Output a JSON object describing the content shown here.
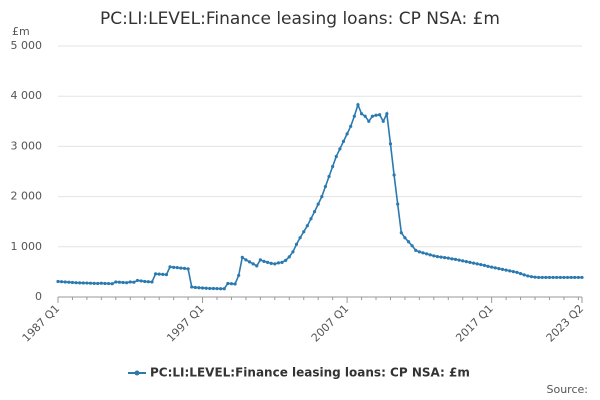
{
  "chart_data": {
    "type": "line",
    "title": "PC:LI:LEVEL:Finance leasing loans: CP NSA: £m",
    "y_label": "£m",
    "source": "Source:",
    "categories": [
      "1987 Q1",
      null,
      null,
      null,
      null,
      null,
      null,
      null,
      null,
      null,
      null,
      null,
      null,
      null,
      null,
      null,
      null,
      null,
      null,
      null,
      null,
      null,
      null,
      null,
      null,
      null,
      null,
      null,
      null,
      null,
      null,
      null,
      null,
      null,
      null,
      null,
      null,
      null,
      null,
      null,
      "1997 Q1",
      null,
      null,
      null,
      null,
      null,
      null,
      null,
      null,
      null,
      null,
      null,
      null,
      null,
      null,
      null,
      null,
      null,
      null,
      null,
      null,
      null,
      null,
      null,
      null,
      null,
      null,
      null,
      null,
      null,
      null,
      null,
      null,
      null,
      null,
      null,
      null,
      null,
      null,
      null,
      "2007 Q1",
      null,
      null,
      null,
      null,
      null,
      null,
      null,
      null,
      null,
      null,
      null,
      null,
      null,
      null,
      null,
      null,
      null,
      null,
      null,
      null,
      null,
      null,
      null,
      null,
      null,
      null,
      null,
      null,
      null,
      null,
      null,
      null,
      null,
      null,
      null,
      null,
      null,
      null,
      null,
      "2017 Q1",
      null,
      null,
      null,
      null,
      null,
      null,
      null,
      null,
      null,
      null,
      null,
      null,
      null,
      null,
      null,
      null,
      null,
      null,
      null,
      null,
      null,
      null,
      null,
      null,
      "2023 Q2"
    ],
    "series": [
      {
        "name": "PC:LI:LEVEL:Finance leasing loans: CP NSA: £m",
        "color": "#2a7ab0",
        "values": [
          310,
          305,
          300,
          295,
          290,
          285,
          282,
          280,
          278,
          275,
          272,
          270,
          275,
          270,
          268,
          265,
          300,
          295,
          290,
          285,
          300,
          295,
          330,
          320,
          310,
          305,
          300,
          460,
          455,
          450,
          445,
          600,
          590,
          585,
          575,
          570,
          560,
          200,
          190,
          185,
          180,
          175,
          170,
          170,
          168,
          165,
          165,
          270,
          265,
          260,
          430,
          790,
          740,
          700,
          660,
          620,
          740,
          710,
          690,
          670,
          660,
          680,
          690,
          730,
          800,
          900,
          1050,
          1180,
          1300,
          1420,
          1560,
          1700,
          1850,
          2000,
          2200,
          2400,
          2600,
          2800,
          2950,
          3100,
          3250,
          3400,
          3600,
          3830,
          3650,
          3600,
          3500,
          3600,
          3620,
          3630,
          3500,
          3650,
          3050,
          2430,
          1850,
          1280,
          1180,
          1100,
          1020,
          930,
          900,
          880,
          860,
          840,
          820,
          805,
          795,
          785,
          775,
          760,
          750,
          735,
          720,
          705,
          690,
          675,
          660,
          645,
          630,
          610,
          595,
          580,
          565,
          550,
          535,
          520,
          505,
          490,
          465,
          440,
          420,
          405,
          395,
          390,
          390,
          390,
          390,
          390,
          390,
          390,
          390,
          390,
          390,
          390,
          390,
          390
        ]
      }
    ],
    "ylim": [
      0,
      5000
    ],
    "yticks": [
      0,
      {
        "value": 1000,
        "label": "1 000"
      },
      {
        "value": 2000,
        "label": "2 000"
      },
      {
        "value": 3000,
        "label": "3 000"
      },
      {
        "value": 4000,
        "label": "4 000"
      },
      {
        "value": 5000,
        "label": "5 000"
      }
    ],
    "grid": true
  }
}
